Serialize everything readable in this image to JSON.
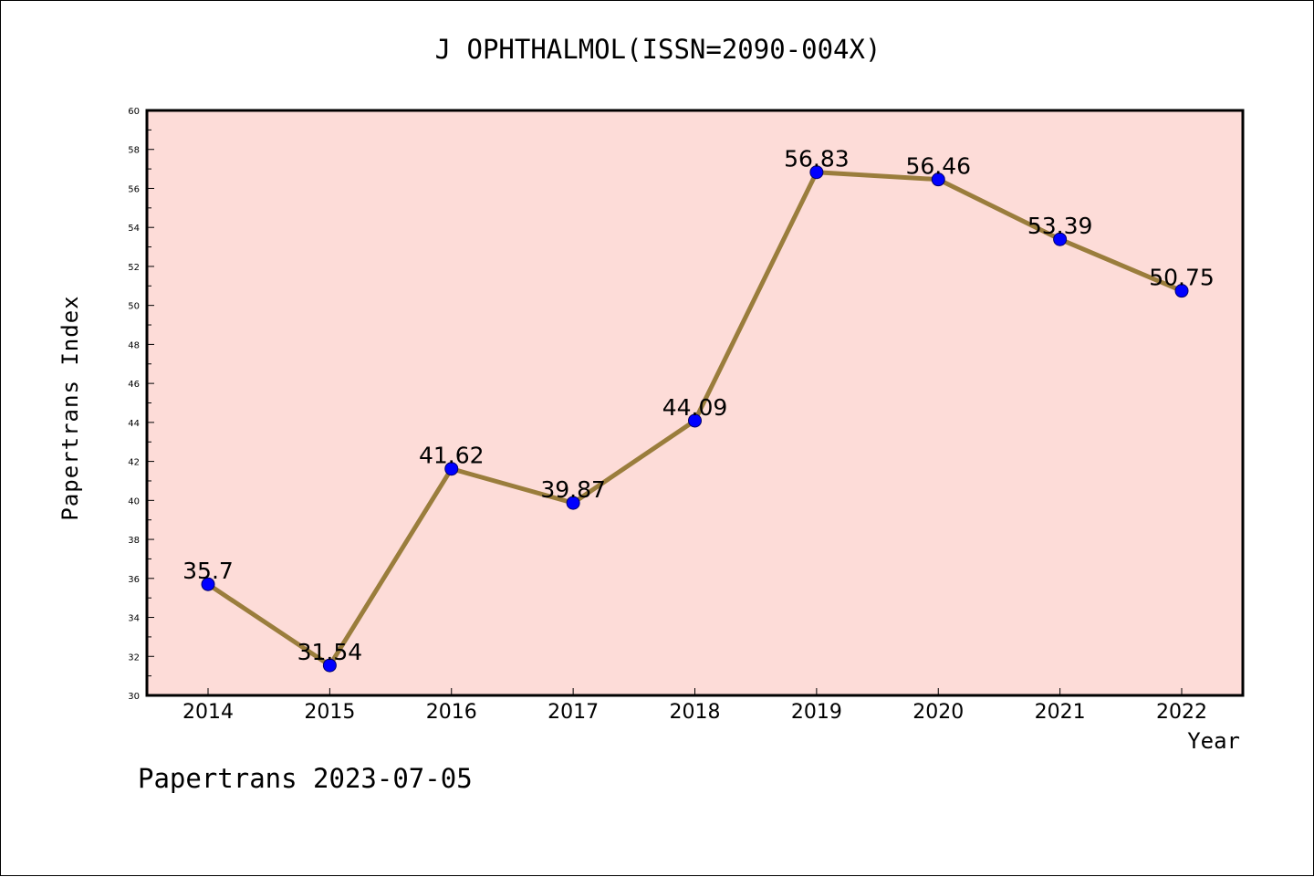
{
  "chart_data": {
    "type": "line",
    "title": "J OPHTHALMOL(ISSN=2090-004X)",
    "xlabel": "Year",
    "ylabel": "Papertrans Index",
    "categories": [
      "2014",
      "2015",
      "2016",
      "2017",
      "2018",
      "2019",
      "2020",
      "2021",
      "2022"
    ],
    "values": [
      35.7,
      31.54,
      41.62,
      39.87,
      44.09,
      56.83,
      56.46,
      53.39,
      50.75
    ],
    "data_labels": [
      "35.7",
      "31.54",
      "41.62",
      "39.87",
      "44.09",
      "56.83",
      "56.46",
      "53.39",
      "50.75"
    ],
    "ylim": [
      30,
      60
    ],
    "y_ticks": [
      "30",
      "32",
      "34",
      "36",
      "38",
      "40",
      "42",
      "44",
      "46",
      "48",
      "50",
      "52",
      "54",
      "56",
      "58",
      "60"
    ],
    "grid": false,
    "colors": {
      "plot_background": "#fddcd8",
      "line": "#9a7d3c",
      "marker": "#0000ff"
    }
  },
  "footer": {
    "note": "Papertrans 2023-07-05"
  }
}
